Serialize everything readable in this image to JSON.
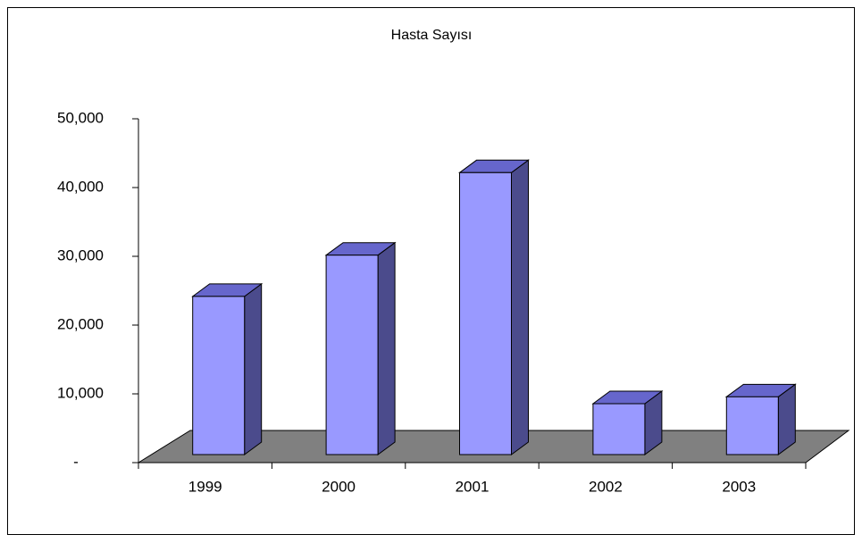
{
  "chart_data": {
    "type": "bar3d",
    "title": "Hasta Sayısı",
    "categories": [
      "1999",
      "2000",
      "2001",
      "2002",
      "2003"
    ],
    "values": [
      23000,
      29000,
      41000,
      7400,
      8400
    ],
    "color": "#9999ff",
    "ylim": [
      0,
      50000
    ],
    "yticks": [
      {
        "value": 0,
        "label": "-"
      },
      {
        "value": 10000,
        "label": "10,000"
      },
      {
        "value": 20000,
        "label": "20,000"
      },
      {
        "value": 30000,
        "label": "30,000"
      },
      {
        "value": 40000,
        "label": "40,000"
      },
      {
        "value": 50000,
        "label": "50,000"
      }
    ]
  }
}
